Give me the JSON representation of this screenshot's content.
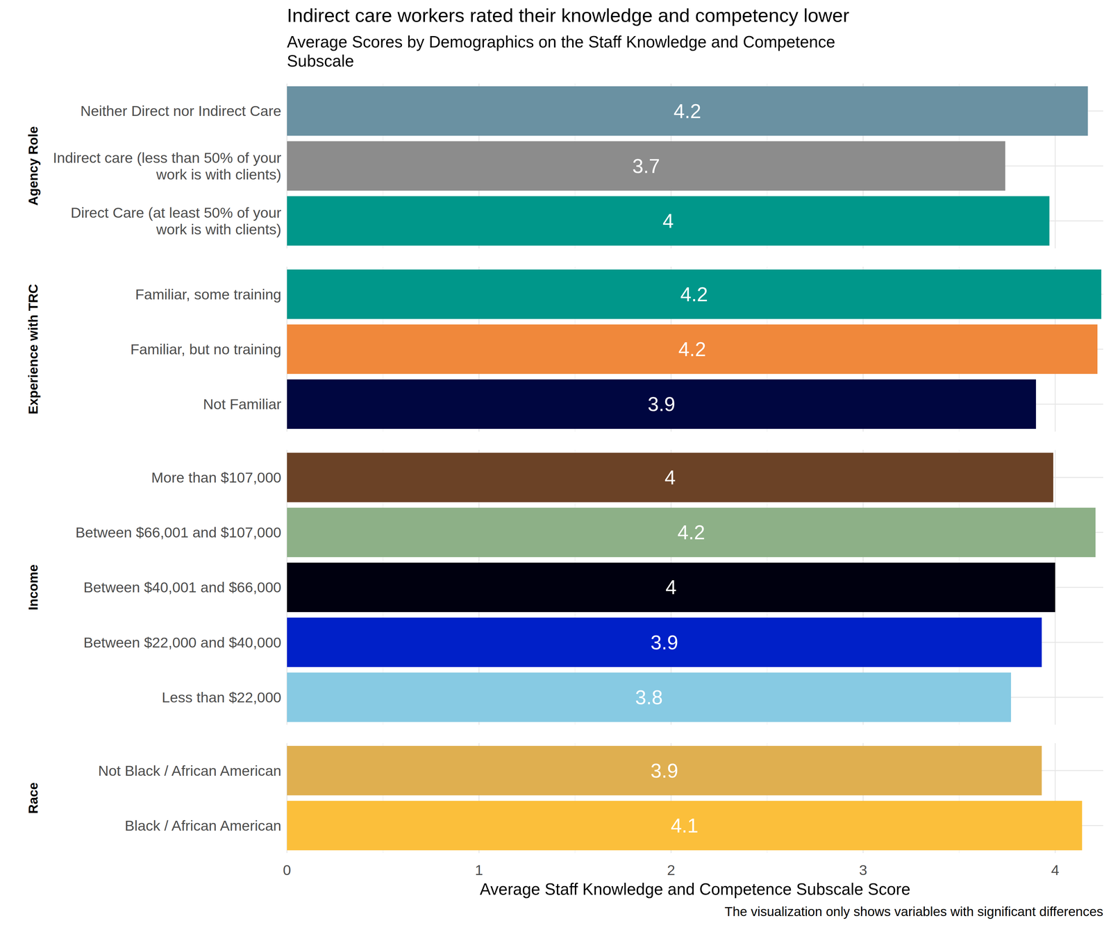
{
  "chart_data": {
    "type": "bar",
    "orientation": "horizontal",
    "title": "Indirect care workers rated their knowledge and competency lower",
    "subtitle": "Average Scores by Demographics on the Staff Knowledge and Competence Subscale",
    "x_label": "Average Staff Knowledge and Competence Subscale Score",
    "caption": "The visualization only shows variables with significant differences",
    "xlim": [
      0,
      4.25
    ],
    "xticks": [
      0,
      1,
      2,
      3,
      4
    ],
    "grid": true,
    "data_labels": true,
    "panels": [
      {
        "name": "Agency Role",
        "categories": [
          "Neither Direct nor Indirect Care",
          "Indirect care (less than 50% of your work is with clients)",
          "Direct Care (at least 50% of your work is with clients)"
        ],
        "values": [
          4.17,
          3.74,
          3.97
        ],
        "value_labels": [
          "4.2",
          "3.7",
          "4"
        ],
        "colors": [
          "#6a91a2",
          "#8c8c8c",
          "#00978a"
        ]
      },
      {
        "name": "Experience with TRC",
        "categories": [
          "Familiar, some training",
          "Familiar, but no training",
          "Not Familiar"
        ],
        "values": [
          4.24,
          4.22,
          3.9
        ],
        "value_labels": [
          "4.2",
          "4.2",
          "3.9"
        ],
        "colors": [
          "#00978a",
          "#f0883b",
          "#000640"
        ]
      },
      {
        "name": "Income",
        "categories": [
          "More than $107,000",
          "Between $66,001 and $107,000",
          "Between $40,001 and $66,000",
          "Between $22,000 and $40,000",
          "Less than $22,000"
        ],
        "values": [
          3.99,
          4.21,
          4.0,
          3.93,
          3.77
        ],
        "value_labels": [
          "4",
          "4.2",
          "4",
          "3.9",
          "3.8"
        ],
        "colors": [
          "#6b4226",
          "#8db087",
          "#00000f",
          "#0020c8",
          "#87cae3"
        ]
      },
      {
        "name": "Race",
        "categories": [
          "Not Black / African American",
          "Black / African American"
        ],
        "values": [
          3.93,
          4.14
        ],
        "value_labels": [
          "3.9",
          "4.1"
        ],
        "colors": [
          "#dfaf50",
          "#fbbf3b"
        ]
      }
    ]
  }
}
